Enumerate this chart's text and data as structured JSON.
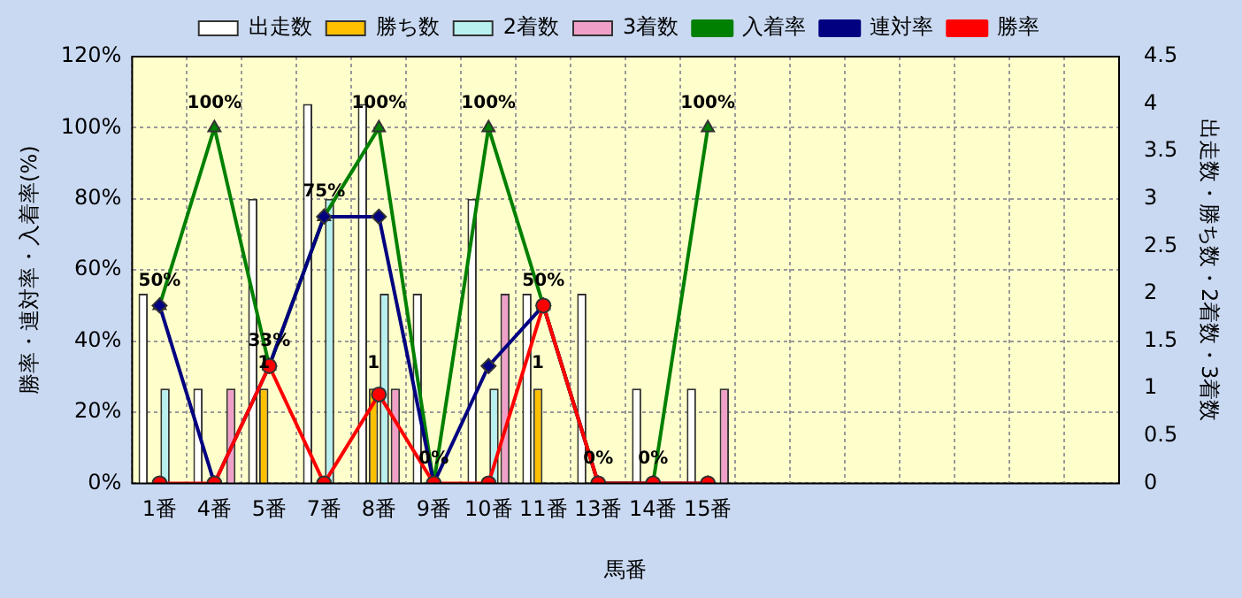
{
  "chart_data": {
    "type": "bar",
    "xlabel": "馬番",
    "ylabel": "勝率・連対率・入着率(%)",
    "y2label": "出走数・勝ち数・2着数・3着数",
    "categories": [
      "1番",
      "4番",
      "5番",
      "7番",
      "8番",
      "9番",
      "10番",
      "11番",
      "13番",
      "14番",
      "15番",
      null,
      null,
      null,
      null,
      null,
      null,
      null
    ],
    "series": [
      {
        "name": "出走数",
        "axis": "y2",
        "color": "#ffffff",
        "values": [
          2,
          1,
          3,
          4,
          4,
          2,
          3,
          2,
          2,
          1,
          1,
          null,
          null,
          null,
          null,
          null,
          null,
          null
        ]
      },
      {
        "name": "勝ち数",
        "axis": "y2",
        "color": "#ffc000",
        "values": [
          0,
          0,
          1,
          0,
          1,
          0,
          0,
          1,
          0,
          0,
          0,
          null,
          null,
          null,
          null,
          null,
          null,
          null
        ],
        "value_labels": [
          null,
          null,
          "1",
          null,
          "1",
          null,
          null,
          "1",
          null,
          null,
          null,
          null,
          null,
          null,
          null,
          null,
          null,
          null
        ]
      },
      {
        "name": "2着数",
        "axis": "y2",
        "color": "#b8f0f0",
        "values": [
          1,
          0,
          0,
          3,
          2,
          0,
          1,
          0,
          0,
          0,
          0,
          null,
          null,
          null,
          null,
          null,
          null,
          null
        ]
      },
      {
        "name": "3着数",
        "axis": "y2",
        "color": "#f0a0c8",
        "values": [
          0,
          1,
          0,
          0,
          1,
          0,
          2,
          0,
          0,
          0,
          1,
          null,
          null,
          null,
          null,
          null,
          null,
          null
        ]
      },
      {
        "name": "入着率",
        "type": "line",
        "axis": "y",
        "color": "#008000",
        "marker": "triangle",
        "values": [
          50,
          100,
          33,
          75,
          100,
          0,
          100,
          50,
          0,
          0,
          100,
          null,
          null,
          null,
          null,
          null,
          null,
          null
        ],
        "value_labels": [
          "50%",
          "100%",
          "33%",
          "75%",
          "100%",
          "0%",
          "100%",
          "50%",
          "0%",
          "0%",
          "100%",
          null,
          null,
          null,
          null,
          null,
          null,
          null
        ]
      },
      {
        "name": "連対率",
        "type": "line",
        "axis": "y",
        "color": "#000080",
        "marker": "diamond",
        "values": [
          50,
          0,
          33,
          75,
          75,
          0,
          33,
          50,
          0,
          0,
          0,
          null,
          null,
          null,
          null,
          null,
          null,
          null
        ]
      },
      {
        "name": "勝率",
        "type": "line",
        "axis": "y",
        "color": "#ff0000",
        "marker": "circle",
        "values": [
          0,
          0,
          33,
          0,
          25,
          0,
          0,
          50,
          0,
          0,
          0,
          null,
          null,
          null,
          null,
          null,
          null,
          null
        ]
      }
    ],
    "ylim": [
      0,
      120
    ],
    "yticks": [
      {
        "value": 0,
        "label": "0%"
      },
      {
        "value": 20,
        "label": "20%"
      },
      {
        "value": 40,
        "label": "40%"
      },
      {
        "value": 60,
        "label": "60%"
      },
      {
        "value": 80,
        "label": "80%"
      },
      {
        "value": 100,
        "label": "100%"
      },
      {
        "value": 120,
        "label": "120%"
      }
    ],
    "y2lim": [
      0,
      4.5
    ],
    "y2ticks": [
      0,
      0.5,
      1,
      1.5,
      2,
      2.5,
      3,
      3.5,
      4,
      4.5
    ],
    "grid": true,
    "legend": "top"
  }
}
